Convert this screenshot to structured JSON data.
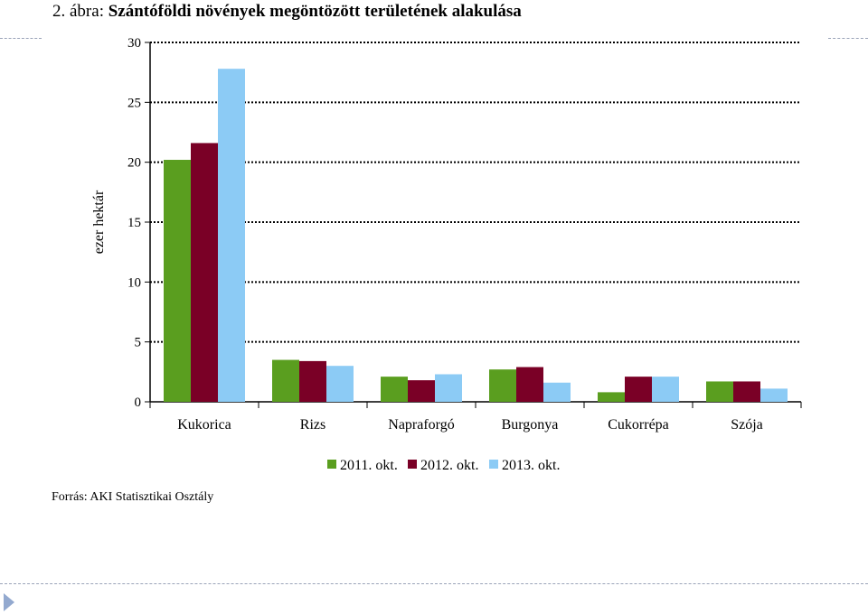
{
  "title": {
    "label": "2. ábra:",
    "text": "Szántóföldi növények megöntözött területének alakulása"
  },
  "source": "Forrás: AKI Statisztikai Osztály",
  "colors": {
    "series_2011": "#5a9e1f",
    "series_2012": "#7a0026",
    "series_2013": "#8ccbf5",
    "decor_dash": "#9aa3b8",
    "decor_arrow": "#93a9cf"
  },
  "chart_data": {
    "type": "bar",
    "title": "",
    "xlabel": "",
    "ylabel": "ezer hektár",
    "ylim": [
      0,
      30
    ],
    "yticks": [
      0,
      5,
      10,
      15,
      20,
      25,
      30
    ],
    "grid": true,
    "legend_position": "bottom",
    "categories": [
      "Kukorica",
      "Rizs",
      "Napraforgó",
      "Burgonya",
      "Cukorrépa",
      "Szója"
    ],
    "series": [
      {
        "name": "2011. okt.",
        "color": "#5a9e1f",
        "values": [
          20.2,
          3.5,
          2.1,
          2.7,
          0.8,
          1.7
        ]
      },
      {
        "name": "2012. okt.",
        "color": "#7a0026",
        "values": [
          21.6,
          3.4,
          1.8,
          2.9,
          2.1,
          1.7
        ]
      },
      {
        "name": "2013. okt.",
        "color": "#8ccbf5",
        "values": [
          27.8,
          3.0,
          2.3,
          1.6,
          2.1,
          1.1
        ]
      }
    ]
  }
}
